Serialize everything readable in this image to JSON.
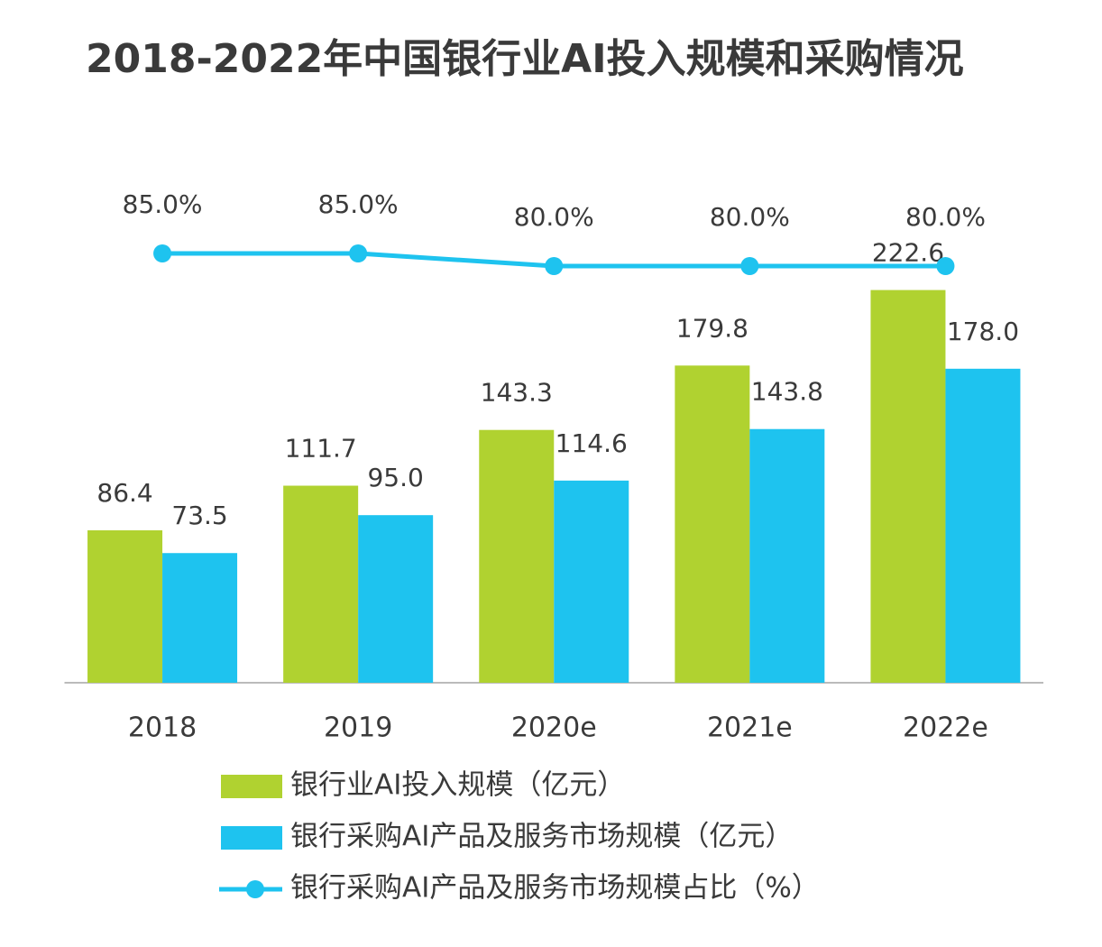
{
  "chart_data": {
    "type": "bar-line",
    "title": "2018-2022年中国银行业AI投入规模和采购情况",
    "categories": [
      "2018",
      "2019",
      "2020e",
      "2021e",
      "2022e"
    ],
    "series": [
      {
        "name": "银行业AI投入规模（亿元）",
        "color": "#b0d230",
        "type": "bar",
        "values": [
          86.4,
          111.7,
          143.3,
          179.8,
          222.6
        ],
        "value_labels": [
          "86.4",
          "111.7",
          "143.3",
          "179.8",
          "222.6"
        ]
      },
      {
        "name": "银行采购AI产品及服务市场规模（亿元）",
        "color": "#1ec3ef",
        "type": "bar",
        "values": [
          73.5,
          95.0,
          114.6,
          143.8,
          178.0
        ],
        "value_labels": [
          "73.5",
          "95.0",
          "114.6",
          "143.8",
          "178.0"
        ]
      },
      {
        "name": "银行采购AI产品及服务市场规模占比（%）",
        "color": "#1ec3ef",
        "type": "line",
        "axis": "y2",
        "values": [
          85.0,
          85.0,
          80.0,
          80.0,
          80.0
        ],
        "value_labels": [
          "85.0%",
          "85.0%",
          "80.0%",
          "80.0%",
          "80.0%"
        ]
      }
    ],
    "ylim": [
      0,
      250
    ],
    "y2lim": [
      0,
      100
    ]
  }
}
